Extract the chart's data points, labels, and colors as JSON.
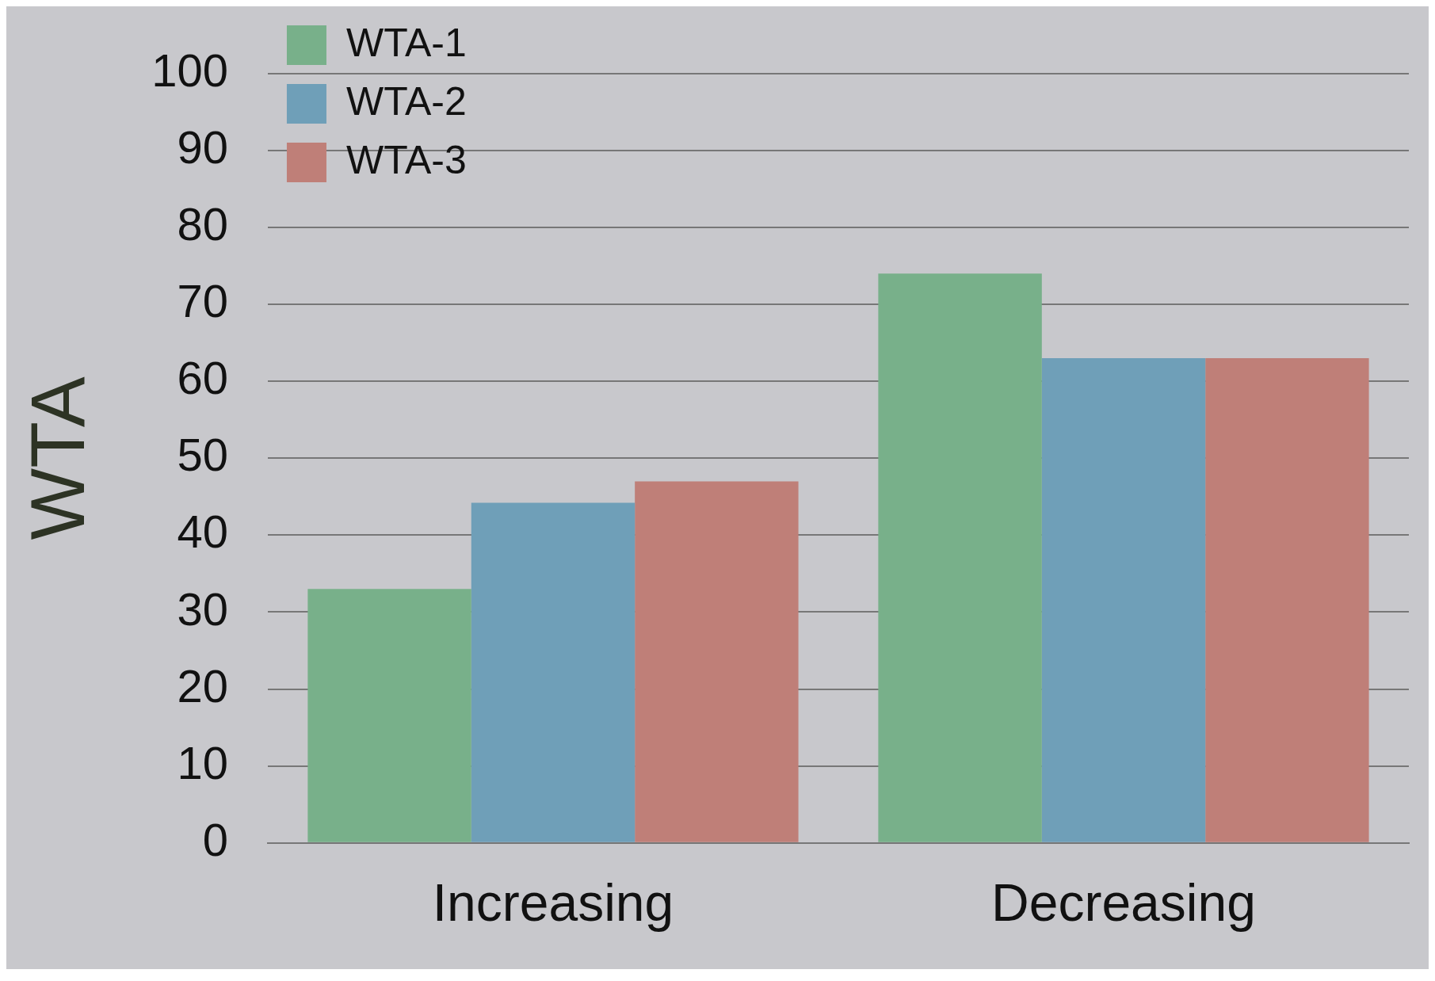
{
  "chart_data": {
    "type": "bar",
    "ylabel": "WTA",
    "categories": [
      "Increasing",
      "Decreasing"
    ],
    "series": [
      {
        "name": "WTA-1",
        "color": "#78b08a",
        "values": [
          33,
          74
        ]
      },
      {
        "name": "WTA-2",
        "color": "#6f9fb8",
        "values": [
          44.2,
          63
        ]
      },
      {
        "name": "WTA-3",
        "color": "#bf7f78",
        "values": [
          47,
          63
        ]
      }
    ],
    "ylim": [
      0,
      100
    ],
    "yticks": [
      0,
      10,
      20,
      30,
      40,
      50,
      60,
      70,
      80,
      90,
      100
    ],
    "grid": "y",
    "legend": "top left"
  }
}
